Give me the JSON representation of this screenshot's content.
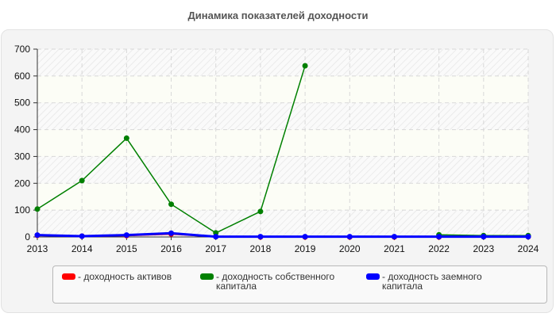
{
  "title": "Динамика показателей доходности",
  "chart_data": {
    "type": "line",
    "title": "Динамика показателей доходности",
    "xlabel": "",
    "ylabel": "",
    "x": [
      2013,
      2014,
      2015,
      2016,
      2017,
      2018,
      2019,
      2020,
      2021,
      2022,
      2023,
      2024
    ],
    "ylim": [
      0,
      700
    ],
    "yticks": [
      0,
      100,
      200,
      300,
      400,
      500,
      600,
      700
    ],
    "grid": true,
    "legend_position": "bottom",
    "series": [
      {
        "name": "доходность активов",
        "color": "#ff0000",
        "values": [
          6,
          3,
          5,
          11,
          1,
          0,
          0,
          0,
          0,
          0,
          1,
          1
        ]
      },
      {
        "name": "доходность собственного капитала",
        "color": "#008000",
        "values": [
          104,
          210,
          368,
          122,
          15,
          95,
          638,
          null,
          null,
          8,
          5,
          5
        ]
      },
      {
        "name": "доходность заемного капитала",
        "color": "#0000ff",
        "values": [
          7,
          3,
          7,
          14,
          1,
          1,
          1,
          1,
          1,
          1,
          1,
          1
        ]
      }
    ]
  },
  "legend": {
    "items": [
      {
        "label": "- доходность активов",
        "color": "#ff0000"
      },
      {
        "label": "- доходность собственного\nкапитала",
        "color": "#008000"
      },
      {
        "label": "- доходность заемного\nкапитала",
        "color": "#0000ff"
      }
    ]
  }
}
